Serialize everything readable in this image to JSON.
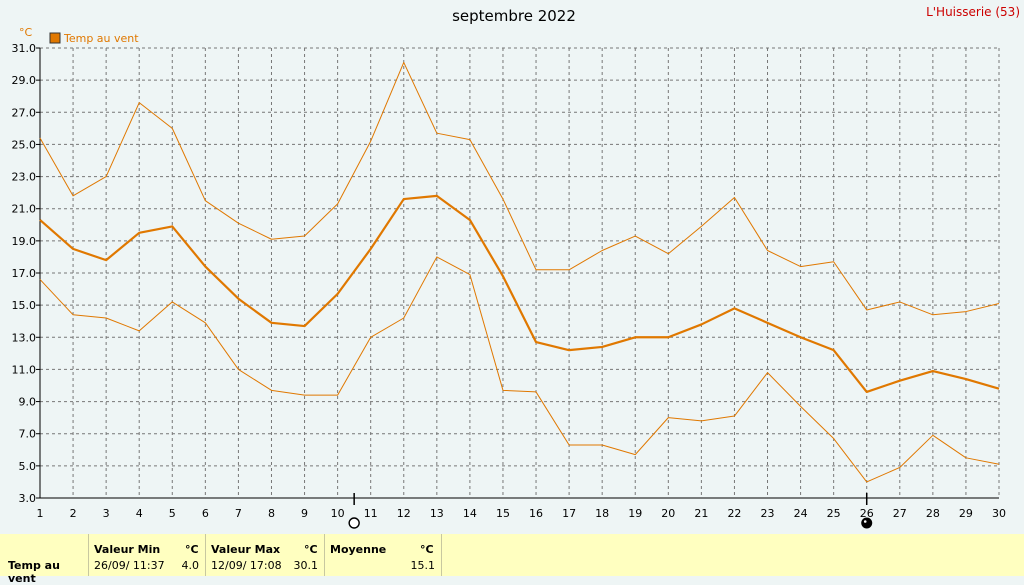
{
  "header": {
    "title": "septembre 2022",
    "site": "L'Huisserie (53)"
  },
  "chart_data": {
    "type": "line",
    "unit": "°C",
    "legend": [
      {
        "name": "Temp au vent",
        "color": "#e07800"
      }
    ],
    "x": [
      1,
      2,
      3,
      4,
      5,
      6,
      7,
      8,
      9,
      10,
      11,
      12,
      13,
      14,
      15,
      16,
      17,
      18,
      19,
      20,
      21,
      22,
      23,
      24,
      25,
      26,
      27,
      28,
      29,
      30
    ],
    "xlim": [
      1,
      30
    ],
    "ylim": [
      3.0,
      31.0
    ],
    "yticks": [
      "3.0",
      "5.0",
      "7.0",
      "9.0",
      "11.0",
      "13.0",
      "15.0",
      "17.0",
      "19.0",
      "21.0",
      "23.0",
      "25.0",
      "27.0",
      "29.0",
      "31.0"
    ],
    "series": [
      {
        "role": "max",
        "color": "#e07800",
        "values": [
          25.4,
          21.8,
          23.0,
          27.6,
          26.0,
          21.5,
          20.1,
          19.1,
          19.3,
          21.3,
          25.2,
          30.1,
          25.7,
          25.3,
          21.6,
          17.2,
          17.2,
          18.4,
          19.3,
          18.2,
          19.9,
          21.7,
          18.4,
          17.4,
          17.7,
          14.7,
          15.2,
          14.4,
          14.6,
          15.1
        ]
      },
      {
        "role": "mean",
        "color": "#e07800",
        "values": [
          20.3,
          18.5,
          17.8,
          19.5,
          19.9,
          17.4,
          15.4,
          13.9,
          13.7,
          15.7,
          18.5,
          21.6,
          21.8,
          20.3,
          16.8,
          12.7,
          12.2,
          12.4,
          13.0,
          13.0,
          13.8,
          14.8,
          13.9,
          13.0,
          12.2,
          9.6,
          10.3,
          10.9,
          10.4,
          9.8
        ]
      },
      {
        "role": "min",
        "color": "#e07800",
        "values": [
          16.6,
          14.4,
          14.2,
          13.4,
          15.2,
          13.9,
          11.0,
          9.7,
          9.4,
          9.4,
          13.0,
          14.2,
          18.0,
          16.9,
          9.7,
          9.6,
          6.3,
          6.3,
          5.7,
          8.0,
          7.8,
          8.1,
          10.8,
          8.7,
          6.7,
          4.0,
          4.9,
          6.9,
          5.5,
          5.1
        ]
      }
    ],
    "moon_phases": [
      {
        "day": 10.5,
        "phase": "full"
      },
      {
        "day": 26,
        "phase": "new"
      }
    ]
  },
  "summary": {
    "row_label": "Temp au vent",
    "min": {
      "label": "Valeur Min",
      "unit": "°C",
      "when": "26/09/  11:37",
      "value": "4.0"
    },
    "max": {
      "label": "Valeur Max",
      "unit": "°C",
      "when": "12/09/  17:08",
      "value": "30.1"
    },
    "avg": {
      "label": "Moyenne",
      "unit": "°C",
      "value": "15.1"
    }
  }
}
